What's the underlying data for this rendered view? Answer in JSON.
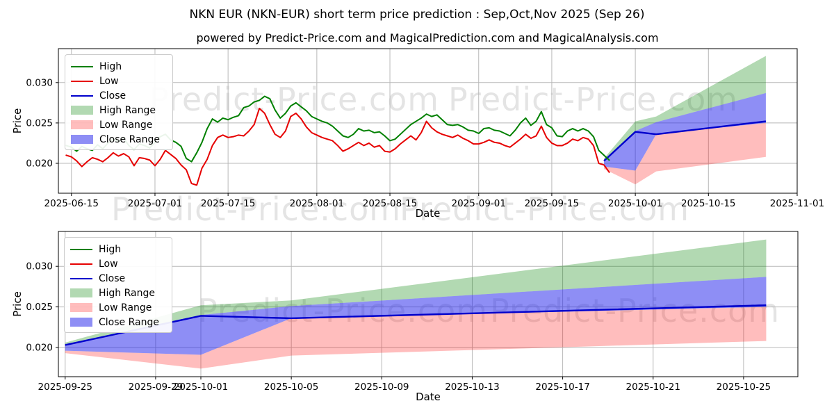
{
  "header": {
    "title": "NKN EUR (NKN-EUR) short term price prediction : Sep,Oct,Nov 2025 (Sep 26)",
    "subtitle": "powered by Predict-Price.com and MagicalPrediction.com and MagicalAnalysis.com"
  },
  "watermark": {
    "text": "Predict-Price.com"
  },
  "legend": [
    {
      "label": "High",
      "type": "line",
      "color": "#008000"
    },
    {
      "label": "Low",
      "type": "line",
      "color": "#e60000"
    },
    {
      "label": "Close",
      "type": "line",
      "color": "#0000cc"
    },
    {
      "label": "High Range",
      "type": "patch",
      "color": "rgba(0,128,0,0.30)"
    },
    {
      "label": "Low Range",
      "type": "patch",
      "color": "rgba(255,0,0,0.26)"
    },
    {
      "label": "Close Range",
      "type": "patch",
      "color": "rgba(30,30,235,0.50)"
    }
  ],
  "chart_data": [
    {
      "type": "line",
      "ylabel": "Price",
      "xlabel": "Date",
      "ylim": [
        0.0163,
        0.0342
      ],
      "y_ticks": [
        0.02,
        0.025,
        0.03
      ],
      "x_range_days": [
        -1.5,
        140
      ],
      "x_ticks": [
        {
          "day": 1,
          "label": "2025-06-15"
        },
        {
          "day": 17,
          "label": "2025-07-01"
        },
        {
          "day": 31,
          "label": "2025-07-15"
        },
        {
          "day": 48,
          "label": "2025-08-01"
        },
        {
          "day": 62,
          "label": "2025-08-15"
        },
        {
          "day": 79,
          "label": "2025-09-01"
        },
        {
          "day": 93,
          "label": "2025-09-15"
        },
        {
          "day": 109,
          "label": "2025-10-01"
        },
        {
          "day": 123,
          "label": "2025-10-15"
        },
        {
          "day": 140,
          "label": "2025-11-01"
        }
      ],
      "daily_start_day": 0,
      "daily_start_date": "2025-06-14",
      "high": [
        0.0222,
        0.022,
        0.0215,
        0.0221,
        0.0218,
        0.0216,
        0.0223,
        0.0218,
        0.0225,
        0.023,
        0.0227,
        0.0231,
        0.0222,
        0.0217,
        0.0224,
        0.0222,
        0.0219,
        0.0226,
        0.0233,
        0.0236,
        0.0229,
        0.0226,
        0.0221,
        0.0206,
        0.0202,
        0.0213,
        0.0226,
        0.0243,
        0.0255,
        0.0251,
        0.0256,
        0.0254,
        0.0257,
        0.0259,
        0.0269,
        0.0271,
        0.0276,
        0.0278,
        0.0283,
        0.028,
        0.0266,
        0.0256,
        0.0262,
        0.0271,
        0.0275,
        0.027,
        0.0265,
        0.0258,
        0.0255,
        0.0252,
        0.025,
        0.0246,
        0.024,
        0.0234,
        0.0232,
        0.0236,
        0.0243,
        0.024,
        0.0241,
        0.0238,
        0.0239,
        0.0234,
        0.0228,
        0.023,
        0.0236,
        0.0242,
        0.0248,
        0.0252,
        0.0256,
        0.0261,
        0.0258,
        0.026,
        0.0254,
        0.0248,
        0.0247,
        0.0248,
        0.0245,
        0.0241,
        0.024,
        0.0237,
        0.0243,
        0.0244,
        0.0241,
        0.024,
        0.0237,
        0.0234,
        0.0241,
        0.025,
        0.0256,
        0.0247,
        0.0252,
        0.0264,
        0.0248,
        0.0244,
        0.0234,
        0.0233,
        0.024,
        0.0243,
        0.024,
        0.0243,
        0.024,
        0.0233,
        0.0216,
        0.021,
        0.0204
      ],
      "low": [
        0.021,
        0.0208,
        0.0203,
        0.0196,
        0.0202,
        0.0207,
        0.0205,
        0.0202,
        0.0207,
        0.0213,
        0.0209,
        0.0212,
        0.0208,
        0.0197,
        0.0207,
        0.0206,
        0.0204,
        0.0197,
        0.0205,
        0.0216,
        0.0211,
        0.0206,
        0.0198,
        0.0192,
        0.0175,
        0.0173,
        0.0194,
        0.0205,
        0.0222,
        0.0232,
        0.0235,
        0.0232,
        0.0233,
        0.0235,
        0.0234,
        0.024,
        0.0248,
        0.0268,
        0.0262,
        0.0248,
        0.0236,
        0.0232,
        0.024,
        0.0258,
        0.0262,
        0.0255,
        0.0245,
        0.0238,
        0.0235,
        0.0232,
        0.023,
        0.0228,
        0.0222,
        0.0215,
        0.0218,
        0.0222,
        0.0226,
        0.0222,
        0.0225,
        0.022,
        0.0222,
        0.0215,
        0.0214,
        0.0218,
        0.0224,
        0.0229,
        0.0234,
        0.0229,
        0.0238,
        0.0252,
        0.0244,
        0.0239,
        0.0236,
        0.0234,
        0.0232,
        0.0235,
        0.0231,
        0.0228,
        0.0224,
        0.0224,
        0.0226,
        0.0229,
        0.0226,
        0.0225,
        0.0222,
        0.022,
        0.0225,
        0.023,
        0.0236,
        0.0231,
        0.0234,
        0.0246,
        0.0232,
        0.0225,
        0.0222,
        0.0222,
        0.0225,
        0.023,
        0.0228,
        0.0232,
        0.023,
        0.0222,
        0.02,
        0.0198,
        0.0189
      ],
      "prediction": {
        "dates": [
          "2025-09-25",
          "2025-10-01",
          "2025-10-05",
          "2025-10-26"
        ],
        "days": [
          103,
          109,
          113,
          134
        ],
        "close": [
          0.0203,
          0.0239,
          0.0236,
          0.0252
        ],
        "high_top": [
          0.0206,
          0.0252,
          0.0258,
          0.0333
        ],
        "close_top": [
          0.0204,
          0.024,
          0.0251,
          0.0287
        ],
        "close_bot": [
          0.0196,
          0.0191,
          0.0236,
          0.025
        ],
        "low_bot": [
          0.0193,
          0.0174,
          0.019,
          0.0208
        ]
      }
    },
    {
      "type": "line",
      "ylabel": "Price",
      "xlabel": "Date",
      "ylim": [
        0.0164,
        0.0343
      ],
      "y_ticks": [
        0.02,
        0.025,
        0.03
      ],
      "x_range_days": [
        102.7,
        135.4
      ],
      "x_ticks": [
        {
          "day": 103,
          "label": "2025-09-25"
        },
        {
          "day": 107,
          "label": "2025-09-29"
        },
        {
          "day": 109,
          "label": "2025-10-01"
        },
        {
          "day": 113,
          "label": "2025-10-05"
        },
        {
          "day": 117,
          "label": "2025-10-09"
        },
        {
          "day": 121,
          "label": "2025-10-13"
        },
        {
          "day": 125,
          "label": "2025-10-17"
        },
        {
          "day": 129,
          "label": "2025-10-21"
        },
        {
          "day": 133,
          "label": "2025-10-25"
        }
      ],
      "prediction": {
        "dates": [
          "2025-09-25",
          "2025-10-01",
          "2025-10-05",
          "2025-10-26"
        ],
        "days": [
          103,
          109,
          113,
          134
        ],
        "close": [
          0.0203,
          0.0239,
          0.0236,
          0.0252
        ],
        "high_top": [
          0.0206,
          0.0252,
          0.0258,
          0.0333
        ],
        "close_top": [
          0.0204,
          0.024,
          0.0251,
          0.0287
        ],
        "close_bot": [
          0.0196,
          0.0191,
          0.0236,
          0.025
        ],
        "low_bot": [
          0.0193,
          0.0174,
          0.019,
          0.0208
        ]
      }
    }
  ]
}
